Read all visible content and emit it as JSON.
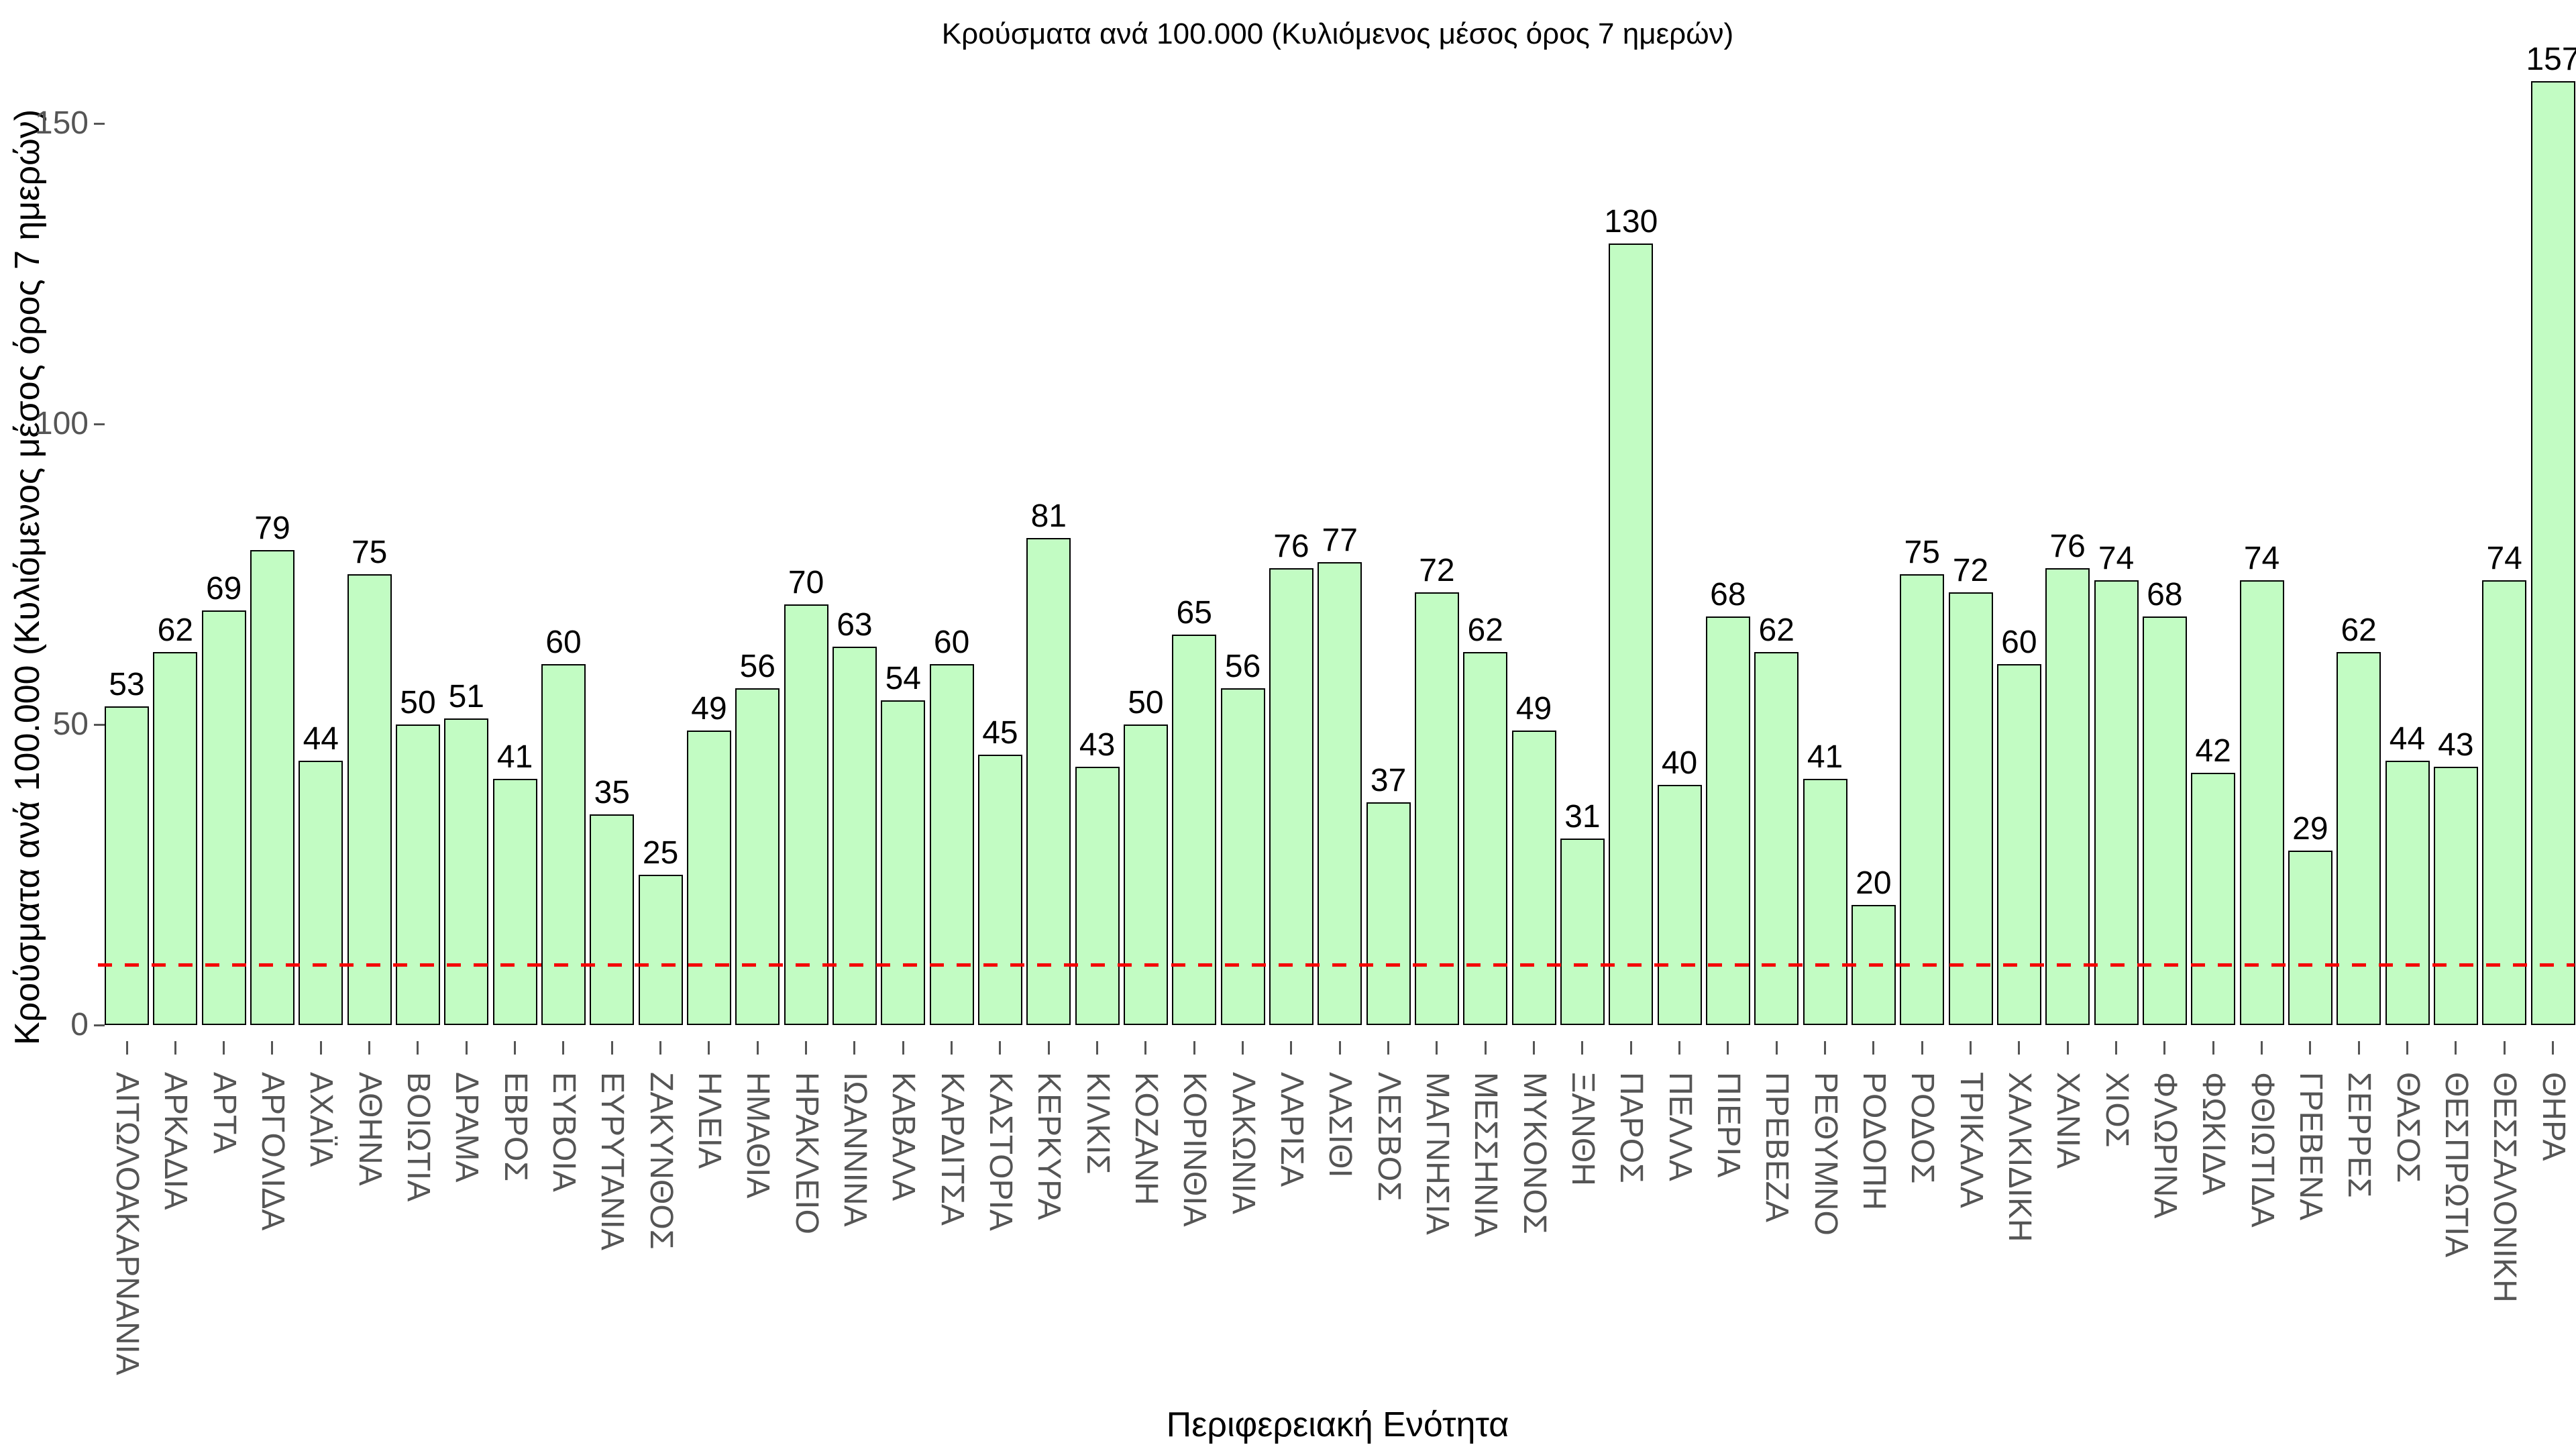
{
  "chart_data": {
    "type": "bar",
    "title": "Κρούσματα ανά 100.000 (Κυλιόμενος μέσος όρος 7 ημερών)",
    "xlabel": "Περιφερειακή Ενότητα",
    "ylabel": "Κρούσματα ανά 100.000 (Κυλιόμενος μέσος όρος 7 ημερών)",
    "categories": [
      "ΑΙΤΩΛΟΑΚΑΡΝΑΝΙΑ",
      "ΑΡΚΑΔΙΑ",
      "ΑΡΤΑ",
      "ΑΡΓΟΛΙΔΑ",
      "ΑΧΑΪΑ",
      "ΑΘΗΝΑ",
      "ΒΟΙΩΤΙΑ",
      "ΔΡΑΜΑ",
      "ΕΒΡΟΣ",
      "ΕΥΒΟΙΑ",
      "ΕΥΡΥΤΑΝΙΑ",
      "ΖΑΚΥΝΘΟΣ",
      "ΗΛΕΙΑ",
      "ΗΜΑΘΙΑ",
      "ΗΡΑΚΛΕΙΟ",
      "ΙΩΑΝΝΙΝΑ",
      "ΚΑΒΑΛΑ",
      "ΚΑΡΔΙΤΣΑ",
      "ΚΑΣΤΟΡΙΑ",
      "ΚΕΡΚΥΡΑ",
      "ΚΙΛΚΙΣ",
      "ΚΟΖΑΝΗ",
      "ΚΟΡΙΝΘΙΑ",
      "ΛΑΚΩΝΙΑ",
      "ΛΑΡΙΣΑ",
      "ΛΑΣΙΘΙ",
      "ΛΕΣΒΟΣ",
      "ΜΑΓΝΗΣΙΑ",
      "ΜΕΣΣΗΝΙΑ",
      "ΜΥΚΟΝΟΣ",
      "ΞΑΝΘΗ",
      "ΠΑΡΟΣ",
      "ΠΕΛΛΑ",
      "ΠΙΕΡΙΑ",
      "ΠΡΕΒΕΖΑ",
      "ΡΕΘΥΜΝΟ",
      "ΡΟΔΟΠΗ",
      "ΡΟΔΟΣ",
      "ΤΡΙΚΑΛΑ",
      "ΧΑΛΚΙΔΙΚΗ",
      "ΧΑΝΙΑ",
      "ΧΙΟΣ",
      "ΦΛΩΡΙΝΑ",
      "ΦΩΚΙΔΑ",
      "ΦΘΙΩΤΙΔΑ",
      "ΓΡΕΒΕΝΑ",
      "ΣΕΡΡΕΣ",
      "ΘΑΣΟΣ",
      "ΘΕΣΠΡΩΤΙΑ",
      "ΘΕΣΣΑΛΟΝΙΚΗ",
      "ΘΗΡΑ"
    ],
    "values": [
      53,
      62,
      69,
      79,
      44,
      75,
      50,
      51,
      41,
      60,
      35,
      25,
      49,
      56,
      70,
      63,
      54,
      60,
      45,
      81,
      43,
      50,
      65,
      56,
      76,
      77,
      37,
      72,
      62,
      49,
      31,
      130,
      40,
      68,
      62,
      41,
      20,
      75,
      72,
      60,
      76,
      74,
      68,
      42,
      74,
      29,
      62,
      44,
      43,
      74,
      157
    ],
    "yticks": [
      0,
      50,
      100,
      150
    ],
    "ylim": [
      0,
      160
    ],
    "grid": false,
    "legend": null,
    "bar_fill_color": "#C2FCC3",
    "bar_edge_color": "#000000",
    "tick_text_color": "#555555",
    "reference_line": {
      "value": 10,
      "color": "#F40000",
      "style": "dashed"
    }
  }
}
